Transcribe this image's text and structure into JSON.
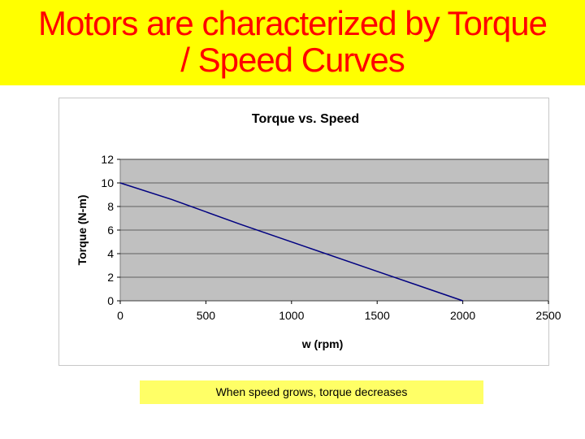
{
  "slide": {
    "title_line1": "Motors are characterized by Torque",
    "title_line2": "/ Speed Curves",
    "caption": "When speed grows, torque decreases"
  },
  "colors": {
    "banner_bg": "#ffff00",
    "title_text": "#ff0000",
    "caption_bg": "#ffff66",
    "plot_bg": "#c0c0c0",
    "series_line": "#000080",
    "gridline": "#000000"
  },
  "chart_data": {
    "type": "line",
    "title": "Torque vs. Speed",
    "xlabel": "w (rpm)",
    "ylabel": "Torque (N-m)",
    "xlim": [
      0,
      2500
    ],
    "ylim": [
      0,
      12
    ],
    "xticks": [
      0,
      500,
      1000,
      1500,
      2000,
      2500
    ],
    "yticks": [
      0,
      2,
      4,
      6,
      8,
      10,
      12
    ],
    "grid": "horizontal",
    "legend": "none",
    "series": [
      {
        "x": [
          0,
          300,
          700,
          1100,
          1500,
          1800,
          2000
        ],
        "y": [
          10,
          8.6,
          6.5,
          4.5,
          2.5,
          1.0,
          0
        ]
      }
    ]
  }
}
